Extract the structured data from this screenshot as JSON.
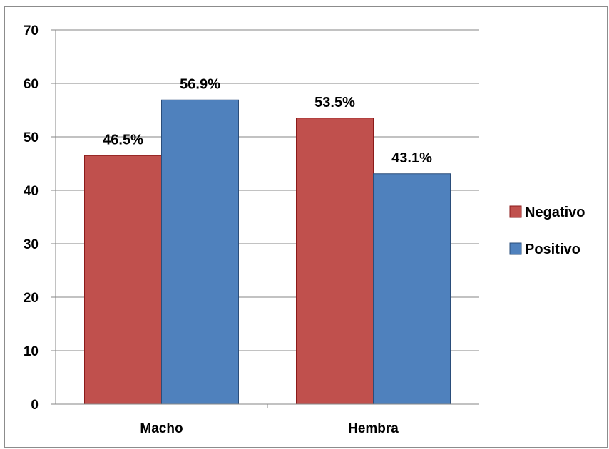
{
  "chart_data": {
    "type": "bar",
    "categories": [
      "Macho",
      "Hembra"
    ],
    "series": [
      {
        "name": "Negativo",
        "values": [
          46.5,
          53.5
        ],
        "labels": [
          "46.5%",
          "53.5%"
        ],
        "fill": "#c0504d",
        "stroke": "#8b1a1a"
      },
      {
        "name": "Positivo",
        "values": [
          56.9,
          43.1
        ],
        "labels": [
          "56.9%",
          "43.1%"
        ],
        "fill": "#4f81bd",
        "stroke": "#2a4d7a"
      }
    ],
    "ylim": [
      0,
      70
    ],
    "yticks": [
      "0",
      "10",
      "20",
      "30",
      "40",
      "50",
      "60",
      "70"
    ],
    "ytick_step": 10,
    "grid": true,
    "legend_position": "right",
    "title": "",
    "xlabel": "",
    "ylabel": ""
  }
}
